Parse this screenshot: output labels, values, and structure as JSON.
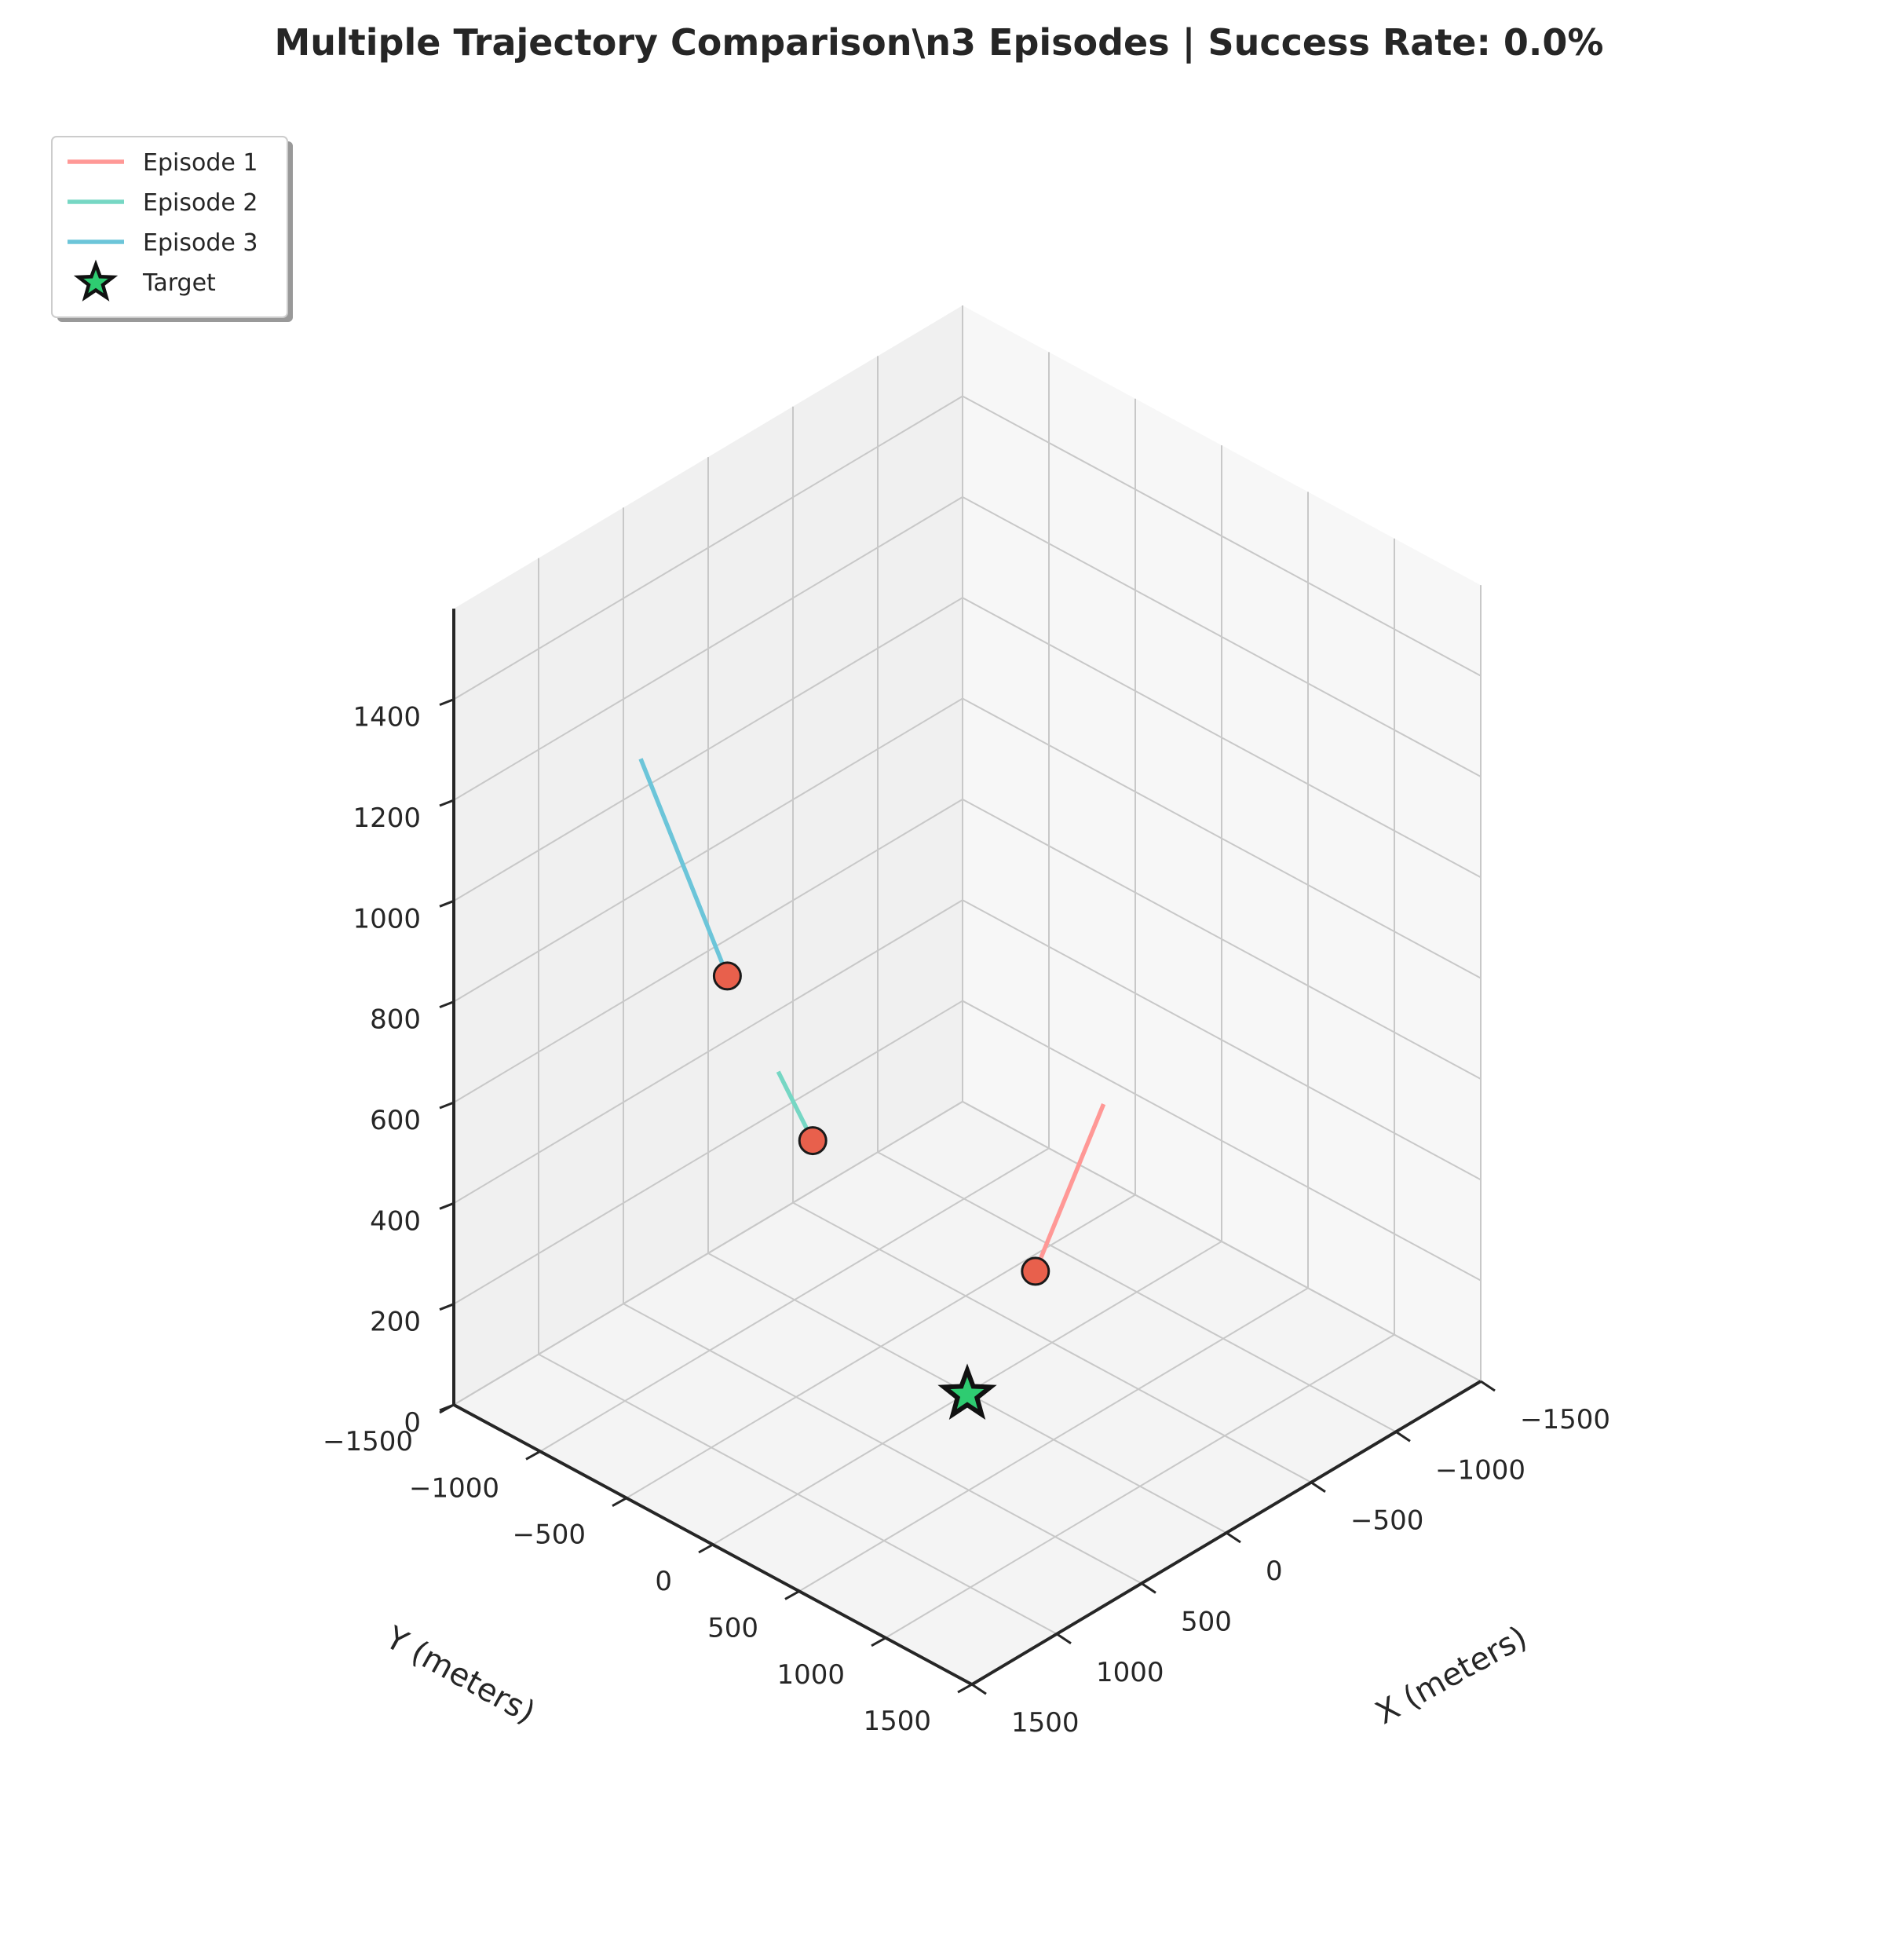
{
  "chart_data": {
    "type": "line3d",
    "title": "Multiple Trajectory Comparison\\n3 Episodes | Success Rate: 0.0%",
    "xlabel": "X (meters)",
    "ylabel": "Y (meters)",
    "zlabel": "",
    "xlim": [
      -1500,
      1500
    ],
    "ylim": [
      -1500,
      1500
    ],
    "zlim": [
      0,
      1500
    ],
    "xticks": [
      -1500,
      -1000,
      -500,
      0,
      500,
      1000,
      1500
    ],
    "yticks": [
      -1500,
      -1000,
      -500,
      0,
      500,
      1000,
      1500
    ],
    "zticks": [
      0,
      200,
      400,
      600,
      800,
      1000,
      1200,
      1400
    ],
    "grid": true,
    "legend_position": "top-left",
    "series": [
      {
        "name": "Episode 1",
        "color": "#ff9896",
        "points": [
          [
            -600,
            200,
            490
          ],
          [
            -300,
            100,
            200
          ]
        ]
      },
      {
        "name": "Episode 2",
        "color": "#76d7c4",
        "points": [
          [
            300,
            -800,
            550
          ],
          [
            300,
            -600,
            450
          ]
        ]
      },
      {
        "name": "Episode 3",
        "color": "#6cc5d9",
        "points": [
          [
            500,
            -1400,
            1100
          ],
          [
            600,
            -800,
            800
          ]
        ]
      }
    ],
    "end_markers": {
      "color": "#e8604c",
      "edge_color": "#1a1a1a"
    },
    "target": {
      "name": "Target",
      "x": 0,
      "y": 0,
      "z": 0,
      "color": "#2ecc71",
      "edge_color": "#111111"
    }
  }
}
